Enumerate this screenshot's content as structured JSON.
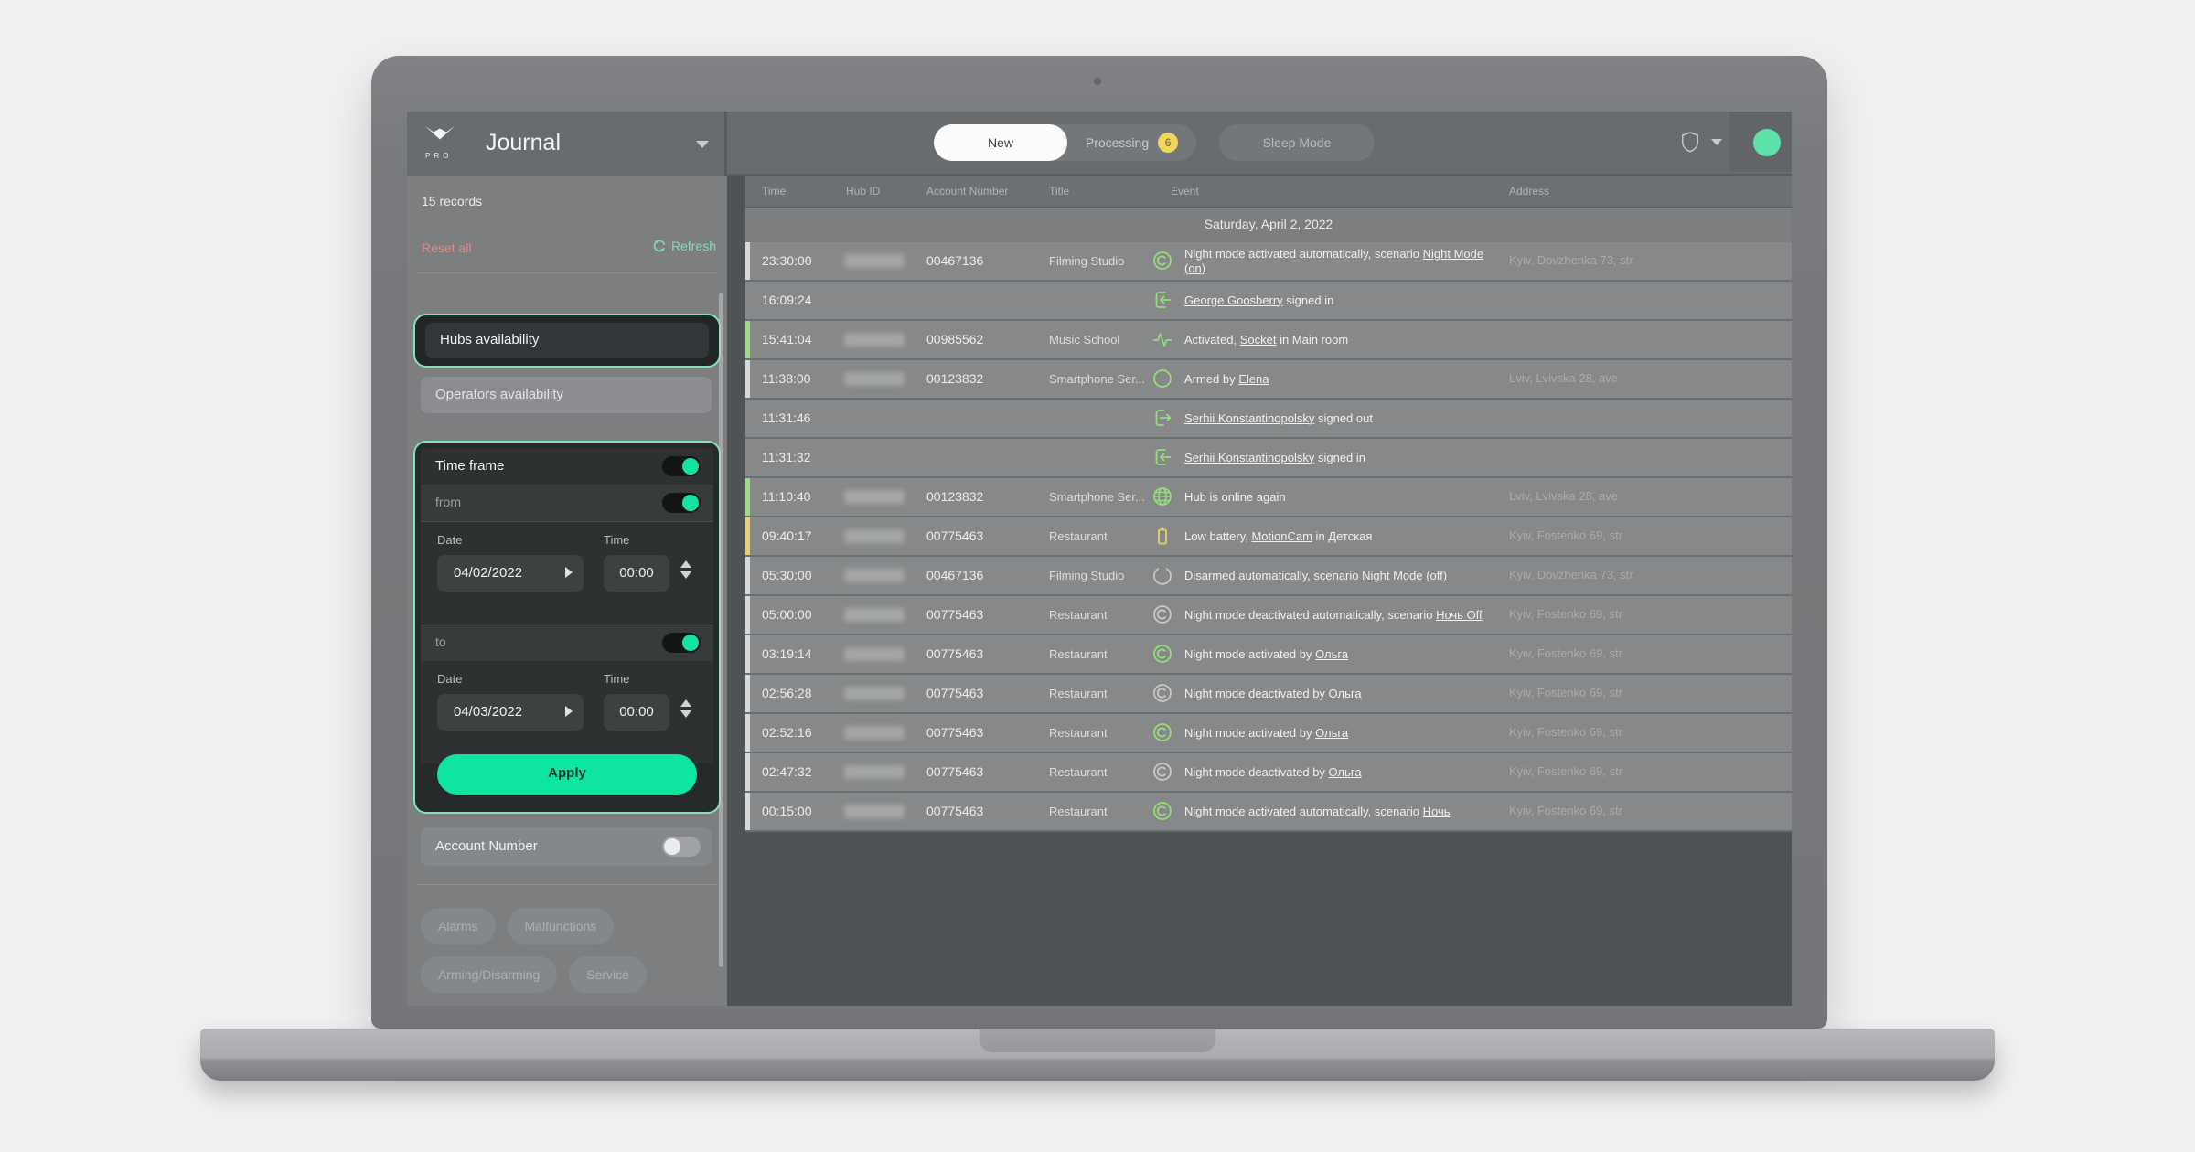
{
  "app": {
    "sidebar": {
      "logo_text": "PRO",
      "title": "Journal",
      "records_count": "15 records",
      "reset_label": "Reset all",
      "refresh_label": "Refresh",
      "filters": {
        "hubs_label": "Hubs availability",
        "operators_label": "Operators availability",
        "time_frame": {
          "label": "Time frame",
          "from_label": "from",
          "to_label": "to",
          "date_label": "Date",
          "time_label": "Time",
          "from_date": "04/02/2022",
          "from_time": "00:00",
          "to_date": "04/03/2022",
          "to_time": "00:00",
          "apply_label": "Apply"
        },
        "account_number_label": "Account Number",
        "chips": [
          "Alarms",
          "Malfunctions",
          "Arming/Disarming",
          "Service"
        ]
      }
    },
    "header": {
      "tabs": [
        {
          "label": "New",
          "active": true
        },
        {
          "label": "Processing",
          "badge": "6"
        },
        {
          "label": "Sleep Mode"
        }
      ]
    },
    "journal": {
      "columns": [
        "Time",
        "Hub ID",
        "Account Number",
        "Title",
        "Event",
        "Address"
      ],
      "date_header": "Saturday, April 2, 2022",
      "rows": [
        {
          "time": "23:30:00",
          "redacted_hub": true,
          "account": "00467136",
          "title": "Filming Studio",
          "icon": "night-on",
          "icon_color": "green",
          "bar": "light",
          "event": [
            {
              "text": "Night mode activated automatically, scenario "
            },
            {
              "text": "Night Mode (on)",
              "underline": true
            }
          ],
          "address": "Kyiv, Dovzhenka 73, str"
        },
        {
          "time": "16:09:24",
          "redacted_hub": false,
          "account": "",
          "title": "",
          "icon": "signin",
          "icon_color": "green",
          "bar": null,
          "event": [
            {
              "text": "George Goosberry",
              "underline": true
            },
            {
              "text": " signed in"
            }
          ],
          "address": ""
        },
        {
          "time": "15:41:04",
          "redacted_hub": true,
          "account": "00985562",
          "title": "Music School",
          "icon": "activity",
          "icon_color": "green",
          "bar": "green",
          "event": [
            {
              "text": "Activated, "
            },
            {
              "text": "Socket",
              "underline": true
            },
            {
              "text": " in Main room"
            }
          ],
          "address": ""
        },
        {
          "time": "11:38:00",
          "redacted_hub": true,
          "account": "00123832",
          "title": "Smartphone Ser...",
          "icon": "circle",
          "icon_color": "green",
          "bar": "light",
          "event": [
            {
              "text": "Armed by "
            },
            {
              "text": "Elena",
              "underline": true
            }
          ],
          "address": "Lviv, Lvivska 28, ave"
        },
        {
          "time": "11:31:46",
          "redacted_hub": false,
          "account": "",
          "title": "",
          "icon": "signout",
          "icon_color": "green",
          "bar": null,
          "event": [
            {
              "text": "Serhii Konstantinopolsky",
              "underline": true
            },
            {
              "text": " signed out"
            }
          ],
          "address": ""
        },
        {
          "time": "11:31:32",
          "redacted_hub": false,
          "account": "",
          "title": "",
          "icon": "signin",
          "icon_color": "green",
          "bar": null,
          "event": [
            {
              "text": "Serhii Konstantinopolsky",
              "underline": true
            },
            {
              "text": " signed in"
            }
          ],
          "address": ""
        },
        {
          "time": "11:10:40",
          "redacted_hub": true,
          "account": "00123832",
          "title": "Smartphone Ser...",
          "icon": "globe",
          "icon_color": "green",
          "bar": "green",
          "event": [
            {
              "text": "Hub is online again"
            }
          ],
          "address": "Lviv, Lvivska 28, ave"
        },
        {
          "time": "09:40:17",
          "redacted_hub": true,
          "account": "00775463",
          "title": "Restaurant",
          "icon": "battery",
          "icon_color": "yellow",
          "bar": "yellow",
          "event": [
            {
              "text": "Low battery, "
            },
            {
              "text": "MotionCam",
              "underline": true
            },
            {
              "text": " in Детская"
            }
          ],
          "address": "Kyiv, Fostenko 69, str"
        },
        {
          "time": "05:30:00",
          "redacted_hub": true,
          "account": "00467136",
          "title": "Filming Studio",
          "icon": "disarmed",
          "icon_color": "gray",
          "bar": "light",
          "event": [
            {
              "text": "Disarmed automatically, scenario "
            },
            {
              "text": "Night Mode (off)",
              "underline": true
            }
          ],
          "address": "Kyiv, Dovzhenka 73, str"
        },
        {
          "time": "05:00:00",
          "redacted_hub": true,
          "account": "00775463",
          "title": "Restaurant",
          "icon": "night-off",
          "icon_color": "gray",
          "bar": "light",
          "event": [
            {
              "text": "Night mode deactivated automatically, scenario "
            },
            {
              "text": "Ночь Off",
              "underline": true
            }
          ],
          "address": "Kyiv, Fostenko 69, str"
        },
        {
          "time": "03:19:14",
          "redacted_hub": true,
          "account": "00775463",
          "title": "Restaurant",
          "icon": "night-on",
          "icon_color": "green",
          "bar": "light",
          "event": [
            {
              "text": "Night mode activated by "
            },
            {
              "text": "Ольга",
              "underline": true
            }
          ],
          "address": "Kyiv, Fostenko 69, str"
        },
        {
          "time": "02:56:28",
          "redacted_hub": true,
          "account": "00775463",
          "title": "Restaurant",
          "icon": "night-off",
          "icon_color": "gray",
          "bar": "light",
          "event": [
            {
              "text": "Night mode deactivated by "
            },
            {
              "text": "Ольга",
              "underline": true
            }
          ],
          "address": "Kyiv, Fostenko 69, str"
        },
        {
          "time": "02:52:16",
          "redacted_hub": true,
          "account": "00775463",
          "title": "Restaurant",
          "icon": "night-on",
          "icon_color": "green",
          "bar": "light",
          "event": [
            {
              "text": "Night mode activated by "
            },
            {
              "text": "Ольга",
              "underline": true
            }
          ],
          "address": "Kyiv, Fostenko 69, str"
        },
        {
          "time": "02:47:32",
          "redacted_hub": true,
          "account": "00775463",
          "title": "Restaurant",
          "icon": "night-off",
          "icon_color": "gray",
          "bar": "light",
          "event": [
            {
              "text": "Night mode deactivated by "
            },
            {
              "text": "Ольга",
              "underline": true
            }
          ],
          "address": "Kyiv, Fostenko 69, str"
        },
        {
          "time": "00:15:00",
          "redacted_hub": true,
          "account": "00775463",
          "title": "Restaurant",
          "icon": "night-on",
          "icon_color": "green",
          "bar": "light",
          "event": [
            {
              "text": "Night mode activated automatically, scenario "
            },
            {
              "text": "Ночь",
              "underline": true
            }
          ],
          "address": "Kyiv, Fostenko 69, str"
        }
      ]
    }
  },
  "colors": {
    "accent_green": "#0fe5a2",
    "toggle_knob_green": "#12e3a1",
    "highlight_border_green": "#82e3b6",
    "icon_green": "#94dc7d",
    "icon_yellow": "#e9d26a",
    "icon_gray": "#c6c8c9",
    "bar_light": "#d7d8d9",
    "reset_red": "#e4897d",
    "refresh_green": "#7cdcb6",
    "badge_yellow": "#efd75e",
    "avatar_green": "#5ee0a9"
  }
}
